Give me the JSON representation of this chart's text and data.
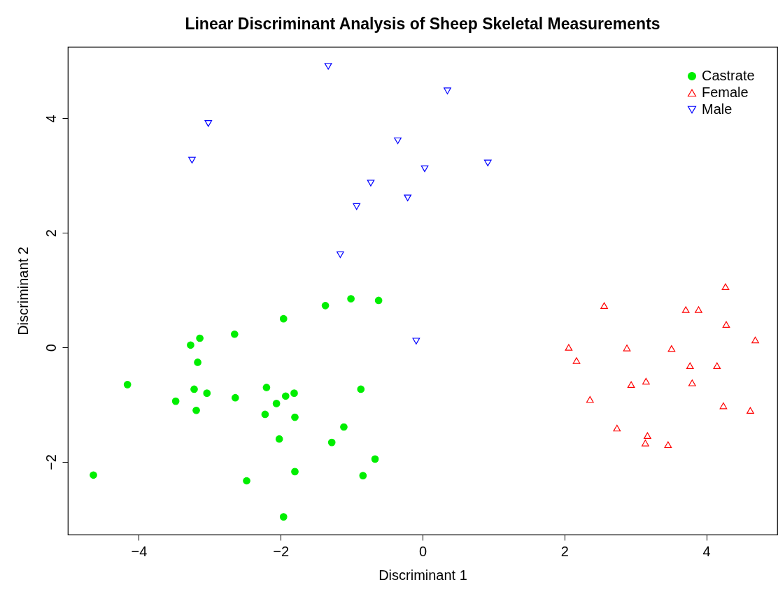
{
  "chart_data": {
    "type": "scatter",
    "title": "Linear Discriminant Analysis of Sheep Skeletal Measurements",
    "xlabel": "Discriminant 1",
    "ylabel": "Discriminant 2",
    "xlim": [
      -5,
      5
    ],
    "ylim": [
      -3.27,
      5.25
    ],
    "xticks": [
      -4,
      -2,
      0,
      2,
      4
    ],
    "yticks": [
      -2,
      0,
      2,
      4
    ],
    "grid": false,
    "legend": "top right",
    "series": [
      {
        "name": "Castrate",
        "color": "#00ee00",
        "marker": "circle",
        "x": [
          -4.64,
          -4.16,
          -3.48,
          -3.27,
          -3.14,
          -3.17,
          -3.22,
          -3.19,
          -3.04,
          -2.65,
          -2.64,
          -2.48,
          -2.2,
          -2.22,
          -2.06,
          -2.02,
          -1.96,
          -1.96,
          -1.93,
          -1.81,
          -1.8,
          -1.8,
          -1.37,
          -1.28,
          -1.11,
          -1.01,
          -0.87,
          -0.84,
          -0.67,
          -0.62
        ],
        "values": [
          -2.23,
          -0.65,
          -0.94,
          0.04,
          0.16,
          -0.26,
          -0.73,
          -1.1,
          -0.8,
          0.23,
          -0.88,
          -2.33,
          -0.7,
          -1.17,
          -0.98,
          -1.6,
          0.5,
          -2.96,
          -0.85,
          -0.8,
          -1.22,
          -2.17,
          0.73,
          -1.66,
          -1.39,
          0.85,
          -0.73,
          -2.24,
          -1.95,
          0.82
        ]
      },
      {
        "name": "Female",
        "color": "#ff0000",
        "marker": "triangle",
        "x": [
          2.06,
          2.17,
          2.56,
          2.36,
          2.74,
          2.88,
          2.94,
          3.15,
          3.17,
          3.14,
          3.46,
          3.51,
          3.71,
          3.89,
          3.77,
          3.8,
          4.15,
          4.24,
          4.27,
          4.28,
          4.62,
          4.69
        ],
        "values": [
          0.0,
          -0.23,
          0.73,
          -0.91,
          -1.41,
          -0.01,
          -0.65,
          -0.59,
          -1.54,
          -1.67,
          -1.7,
          -0.02,
          0.66,
          0.66,
          -0.32,
          -0.62,
          -0.32,
          -1.02,
          1.06,
          0.4,
          -1.1,
          0.13
        ]
      },
      {
        "name": "Male",
        "color": "#0000ff",
        "marker": "triangle-down",
        "x": [
          -1.33,
          0.35,
          -3.02,
          -3.25,
          -0.35,
          0.03,
          0.92,
          -0.73,
          -0.21,
          -0.93,
          -1.16,
          -0.09
        ],
        "values": [
          4.91,
          4.48,
          3.91,
          3.27,
          3.61,
          3.12,
          3.22,
          2.87,
          2.61,
          2.46,
          1.62,
          0.11
        ]
      }
    ]
  }
}
